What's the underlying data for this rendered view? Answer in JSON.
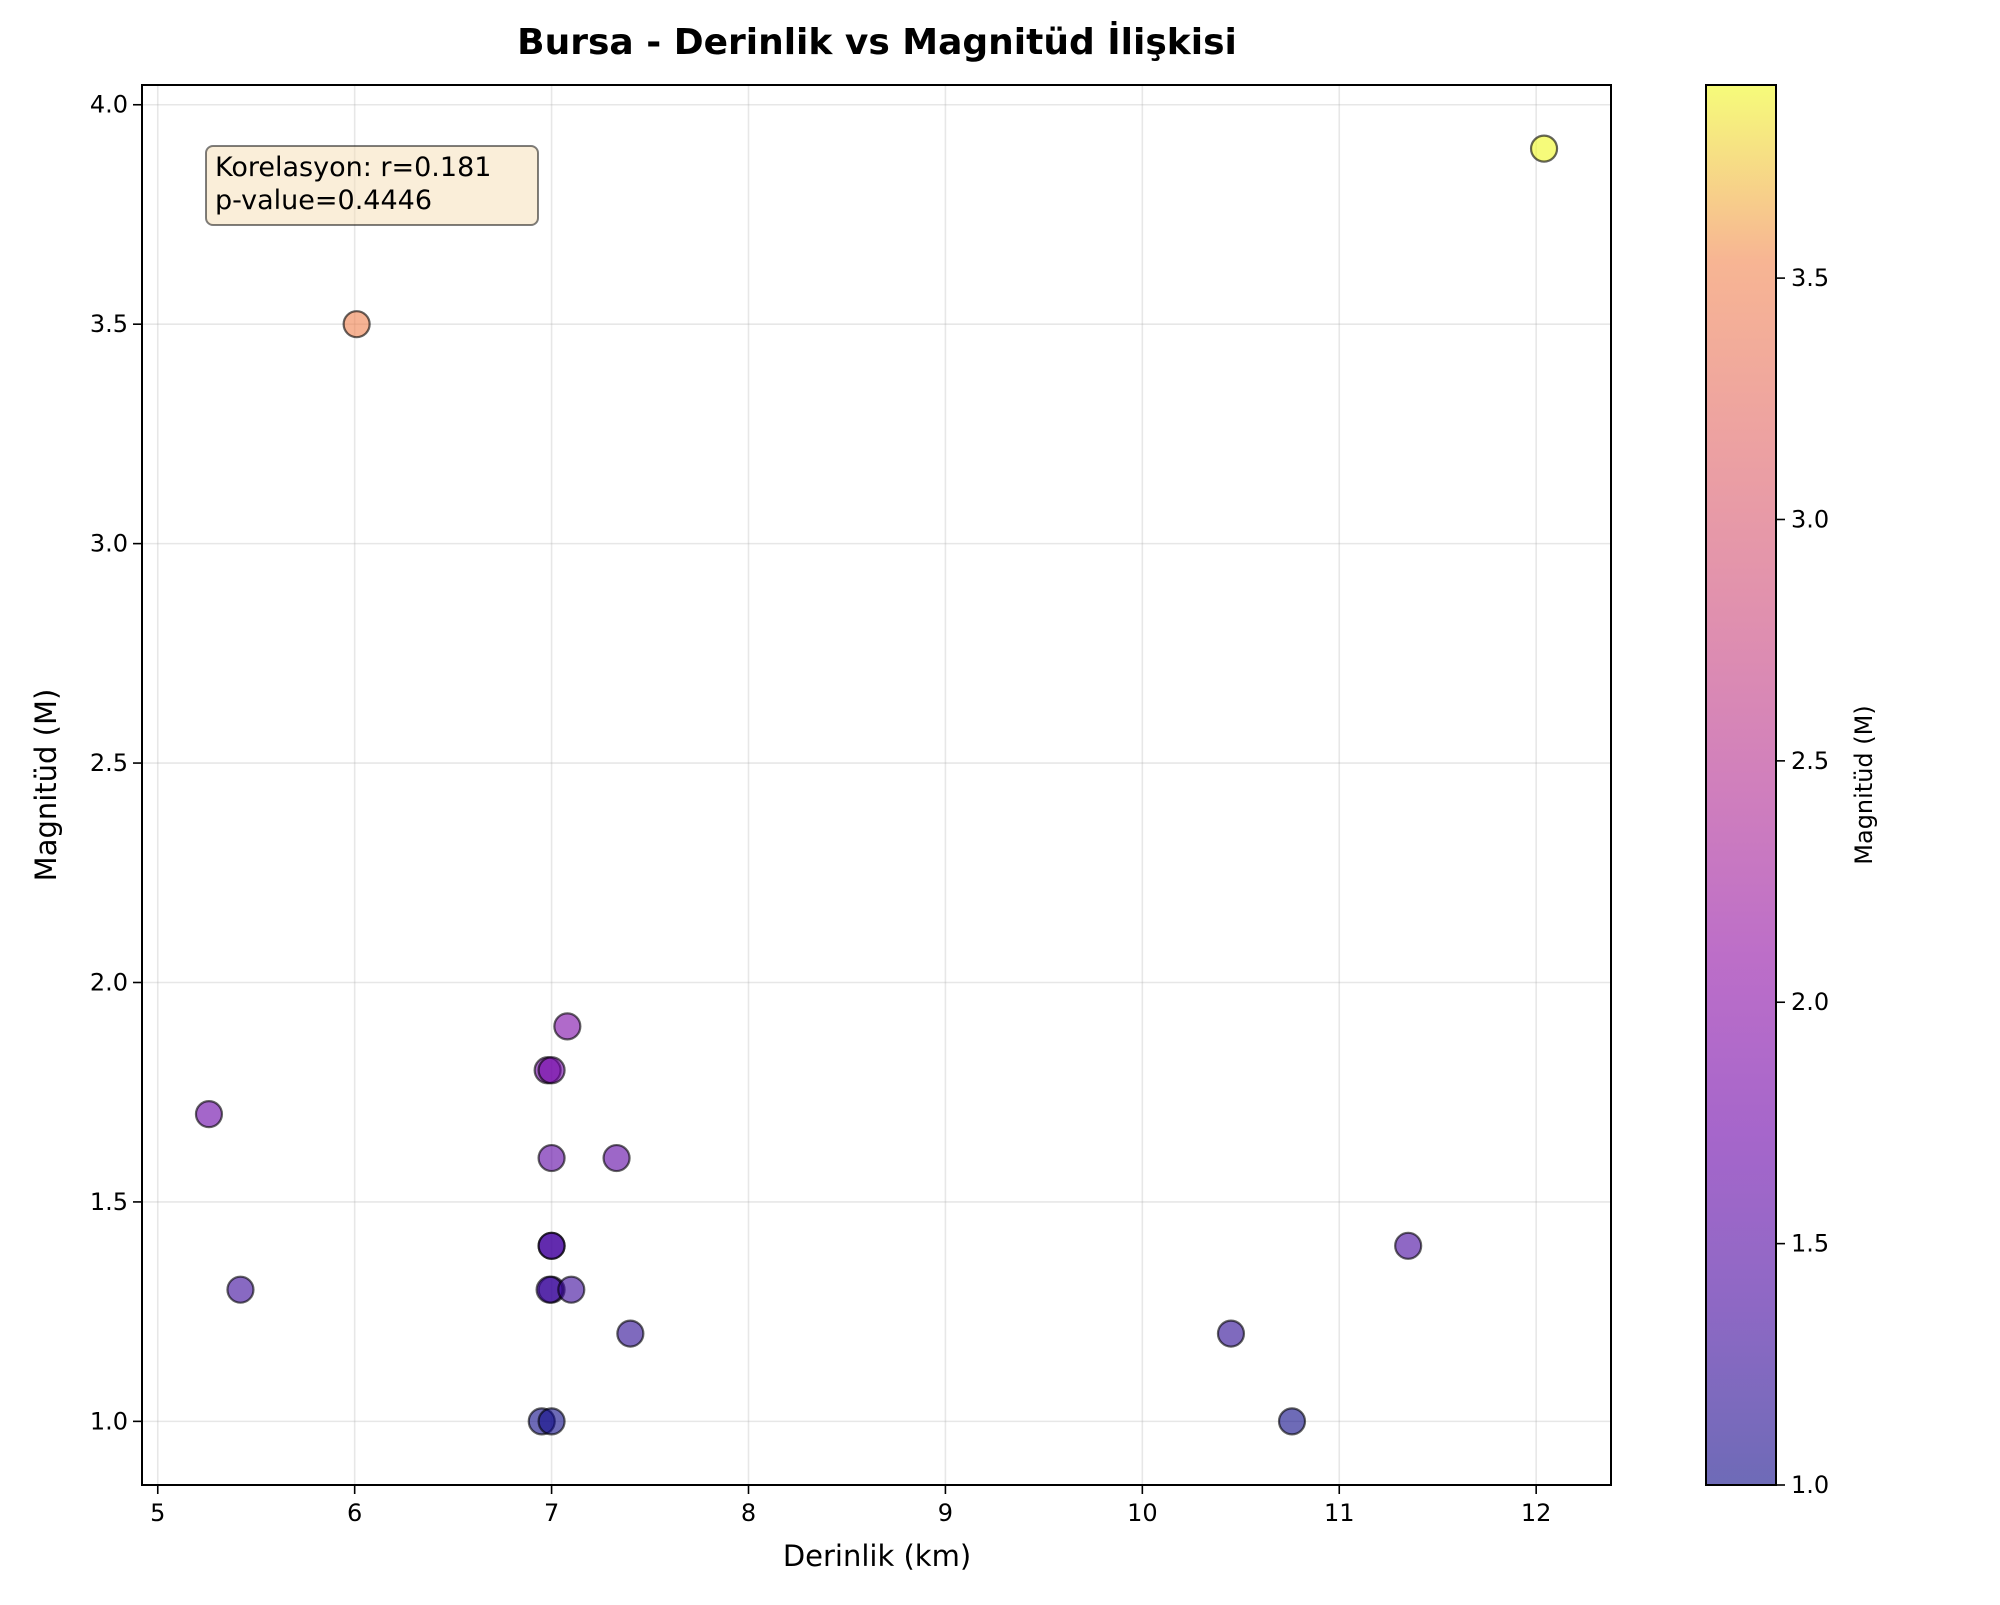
{
  "chart_data": {
    "type": "scatter",
    "title": "Bursa - Derinlik vs Magnitüd İlişkisi",
    "xlabel": "Derinlik (km)",
    "ylabel": "Magnitüd (M)",
    "xlim": [
      4.92,
      12.38
    ],
    "ylim": [
      0.855,
      4.045
    ],
    "xticks": [
      "5",
      "6",
      "7",
      "8",
      "9",
      "10",
      "11",
      "12"
    ],
    "yticks": [
      "1.0",
      "1.5",
      "2.0",
      "2.5",
      "3.0",
      "3.5",
      "4.0"
    ],
    "grid": true,
    "colorbar": {
      "label": "Magnitüd (M)",
      "range": [
        1.0,
        3.9
      ],
      "ticks": [
        "1.0",
        "1.5",
        "2.0",
        "2.5",
        "3.0",
        "3.5"
      ],
      "colormap": "plasma"
    },
    "annotation": {
      "line1": "Korelasyon: r=0.181",
      "line2": "p-value=0.4446"
    },
    "points": [
      {
        "x": 12.04,
        "y": 3.9
      },
      {
        "x": 6.01,
        "y": 3.5
      },
      {
        "x": 7.08,
        "y": 1.9
      },
      {
        "x": 6.98,
        "y": 1.8
      },
      {
        "x": 7.0,
        "y": 1.8
      },
      {
        "x": 5.26,
        "y": 1.7
      },
      {
        "x": 7.0,
        "y": 1.6
      },
      {
        "x": 7.33,
        "y": 1.6
      },
      {
        "x": 7.0,
        "y": 1.4
      },
      {
        "x": 7.0,
        "y": 1.4
      },
      {
        "x": 11.35,
        "y": 1.4
      },
      {
        "x": 5.42,
        "y": 1.3
      },
      {
        "x": 7.0,
        "y": 1.3
      },
      {
        "x": 6.99,
        "y": 1.3
      },
      {
        "x": 7.1,
        "y": 1.3
      },
      {
        "x": 7.4,
        "y": 1.2
      },
      {
        "x": 10.45,
        "y": 1.2
      },
      {
        "x": 6.95,
        "y": 1.0
      },
      {
        "x": 7.0,
        "y": 1.0
      },
      {
        "x": 10.76,
        "y": 1.0
      }
    ]
  }
}
